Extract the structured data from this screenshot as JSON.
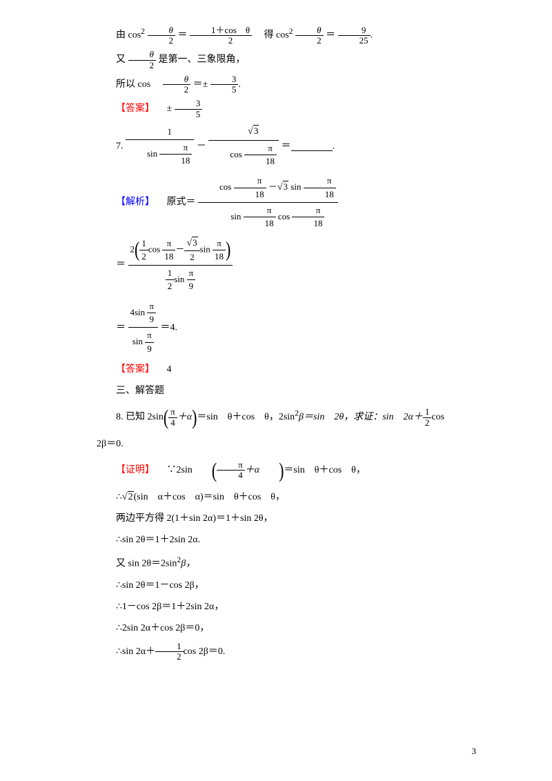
{
  "line1_a": "由 cos",
  "line1_sup": "2",
  "line1_eq": "＝",
  "line1_mid": "　得 cos",
  "line1_end": "＝",
  "line1_period": ".",
  "frac_theta2_top": "θ",
  "frac_theta2_bot": "2",
  "frac_1cos_top": "1＋cos　θ",
  "frac_1cos_bot": "2",
  "frac_925_top": "9",
  "frac_925_bot": "25",
  "line2_a": "又",
  "line2_b": "是第一、三象限角，",
  "line3_a": "所以 cos　",
  "line3_b": "＝±",
  "line3_c": ".",
  "frac_35_top": "3",
  "frac_35_bot": "5",
  "answer_label": "【答案】",
  "answer6": "±",
  "q7_num": "7.",
  "q7_minus": "－",
  "q7_eq": "＝",
  "frac1_top": "1",
  "sin_pi18": "sin ",
  "cos_pi18": "cos ",
  "pi_top": "π",
  "pi18_bot": "18",
  "pi9_bot": "9",
  "sqrt3": "3",
  "analysis_label": "【解析】",
  "analysis_a": "　原式＝",
  "step1_top_a": "cos ",
  "step1_top_b": "－",
  "step1_top_c": "sin ",
  "step1_bot_a": "sin ",
  "step1_bot_b": "cos ",
  "step2_eq": "＝",
  "step2_top_a": "2",
  "step2_top_b": "cos ",
  "step2_top_c": "－",
  "step2_top_d": "sin ",
  "step2_bot_a": "sin ",
  "frac12_top": "1",
  "frac12_bot": "2",
  "frac_sqrt3_2_bot": "2",
  "step3_top_a": "4sin ",
  "step3_bot_a": "sin ",
  "step3_end": "＝4.",
  "answer7": "4",
  "section3": "三、解答题",
  "q8_a": "8. 已知 2sin",
  "q8_b": "＝sin　θ＋cos　θ，2sin",
  "q8_b2": "β＝sin　2θ，求证：sin　2α＋",
  "q8_c": "cos",
  "q8_d": "2β＝0.",
  "frac_pi4_top": "π",
  "frac_pi4_bot": "4",
  "pi4_plus": "＋α",
  "proof_label": "【证明】",
  "proof_a": "　∵2sin",
  "proof_b": "＝sin　θ＋cos　θ，",
  "p2": "∴",
  "p2_b": "(sin　α＋cos　α)＝sin　θ＋cos　θ，",
  "sqrt2": "2",
  "p3": "两边平方得 2(1＋sin 2α)＝1＋sin 2θ，",
  "p4": "∴sin 2θ＝1＋2sin 2α.",
  "p5": "又 sin 2θ＝2sin",
  "p5_b": "β，",
  "p6": "∴sin 2θ＝1－cos 2β，",
  "p7": "∴1－cos 2β＝1＋2sin 2α，",
  "p8": "∴2sin 2α＋cos 2β＝0，",
  "p9": "∴sin 2α＋",
  "p9_b": "cos 2β＝0.",
  "page_number": "3"
}
